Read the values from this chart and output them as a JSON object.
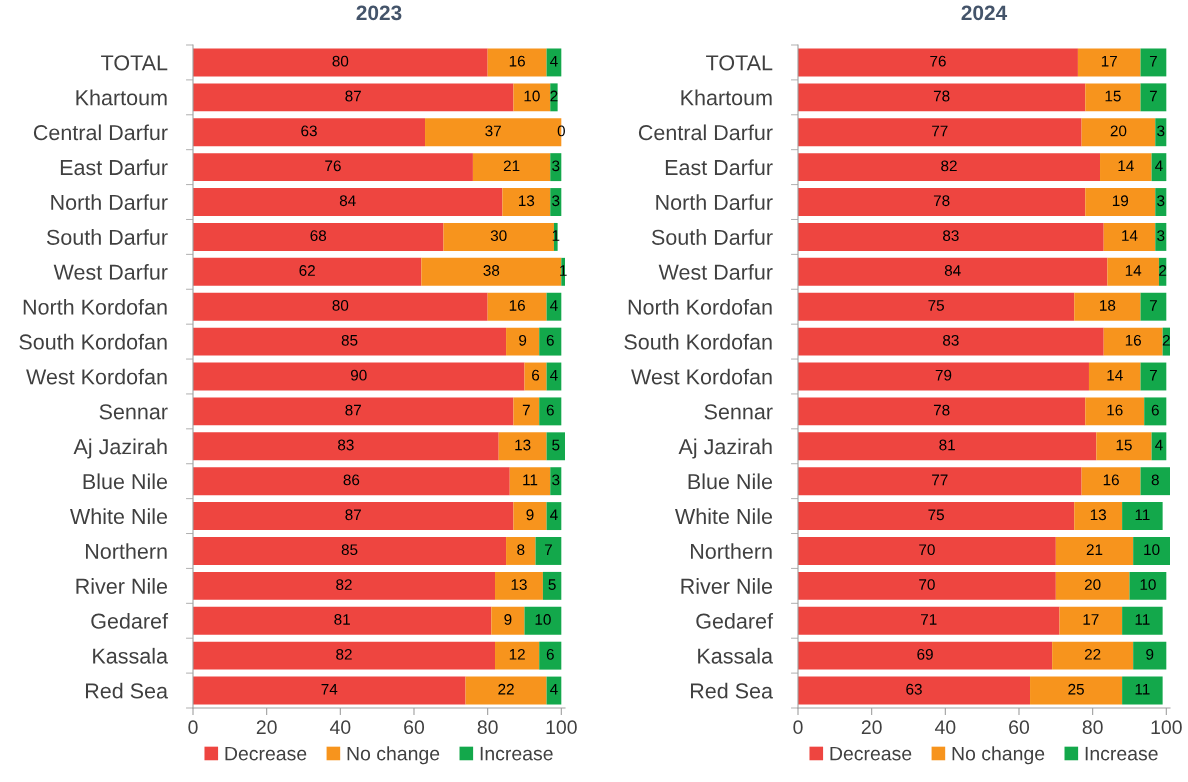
{
  "chart_data": [
    {
      "type": "bar",
      "title": "2023",
      "orientation": "horizontal",
      "stacked": true,
      "data_labels": true,
      "legend": "bottom",
      "grid": false,
      "categories": [
        "TOTAL",
        "Khartoum",
        "Central Darfur",
        "East Darfur",
        "North Darfur",
        "South Darfur",
        "West Darfur",
        "North Kordofan",
        "South Kordofan",
        "West Kordofan",
        "Sennar",
        "Aj Jazirah",
        "Blue Nile",
        "White Nile",
        "Northern",
        "River Nile",
        "Gedaref",
        "Kassala",
        "Red Sea"
      ],
      "xlim": [
        0,
        101
      ],
      "xticks": [
        0,
        20,
        40,
        60,
        80,
        100
      ],
      "series": [
        {
          "name": "Decrease",
          "color": "#ee4540",
          "values": [
            80,
            87,
            63,
            76,
            84,
            68,
            62,
            80,
            85,
            90,
            87,
            83,
            86,
            87,
            85,
            82,
            81,
            82,
            74
          ]
        },
        {
          "name": "No change",
          "color": "#f7941d",
          "values": [
            16,
            10,
            37,
            21,
            13,
            30,
            38,
            16,
            9,
            6,
            7,
            13,
            11,
            9,
            8,
            13,
            9,
            12,
            22
          ]
        },
        {
          "name": "Increase",
          "color": "#13a84b",
          "values": [
            4,
            2,
            0,
            3,
            3,
            1,
            1,
            4,
            6,
            4,
            6,
            5,
            3,
            4,
            7,
            5,
            10,
            6,
            4
          ]
        }
      ]
    },
    {
      "type": "bar",
      "title": "2024",
      "orientation": "horizontal",
      "stacked": true,
      "data_labels": true,
      "legend": "bottom",
      "grid": false,
      "categories": [
        "TOTAL",
        "Khartoum",
        "Central Darfur",
        "East Darfur",
        "North Darfur",
        "South Darfur",
        "West Darfur",
        "North Kordofan",
        "South Kordofan",
        "West Kordofan",
        "Sennar",
        "Aj Jazirah",
        "Blue Nile",
        "White Nile",
        "Northern",
        "River Nile",
        "Gedaref",
        "Kassala",
        "Red Sea"
      ],
      "xlim": [
        0,
        101
      ],
      "xticks": [
        0,
        20,
        40,
        60,
        80,
        100
      ],
      "series": [
        {
          "name": "Decrease",
          "color": "#ee4540",
          "values": [
            76,
            78,
            77,
            82,
            78,
            83,
            84,
            75,
            83,
            79,
            78,
            81,
            77,
            75,
            70,
            70,
            71,
            69,
            63
          ]
        },
        {
          "name": "No change",
          "color": "#f7941d",
          "values": [
            17,
            15,
            20,
            14,
            19,
            14,
            14,
            18,
            16,
            14,
            16,
            15,
            16,
            13,
            21,
            20,
            17,
            22,
            25
          ]
        },
        {
          "name": "Increase",
          "color": "#13a84b",
          "values": [
            7,
            7,
            3,
            4,
            3,
            3,
            2,
            7,
            2,
            7,
            6,
            4,
            8,
            11,
            10,
            10,
            11,
            9,
            11
          ]
        }
      ]
    }
  ]
}
